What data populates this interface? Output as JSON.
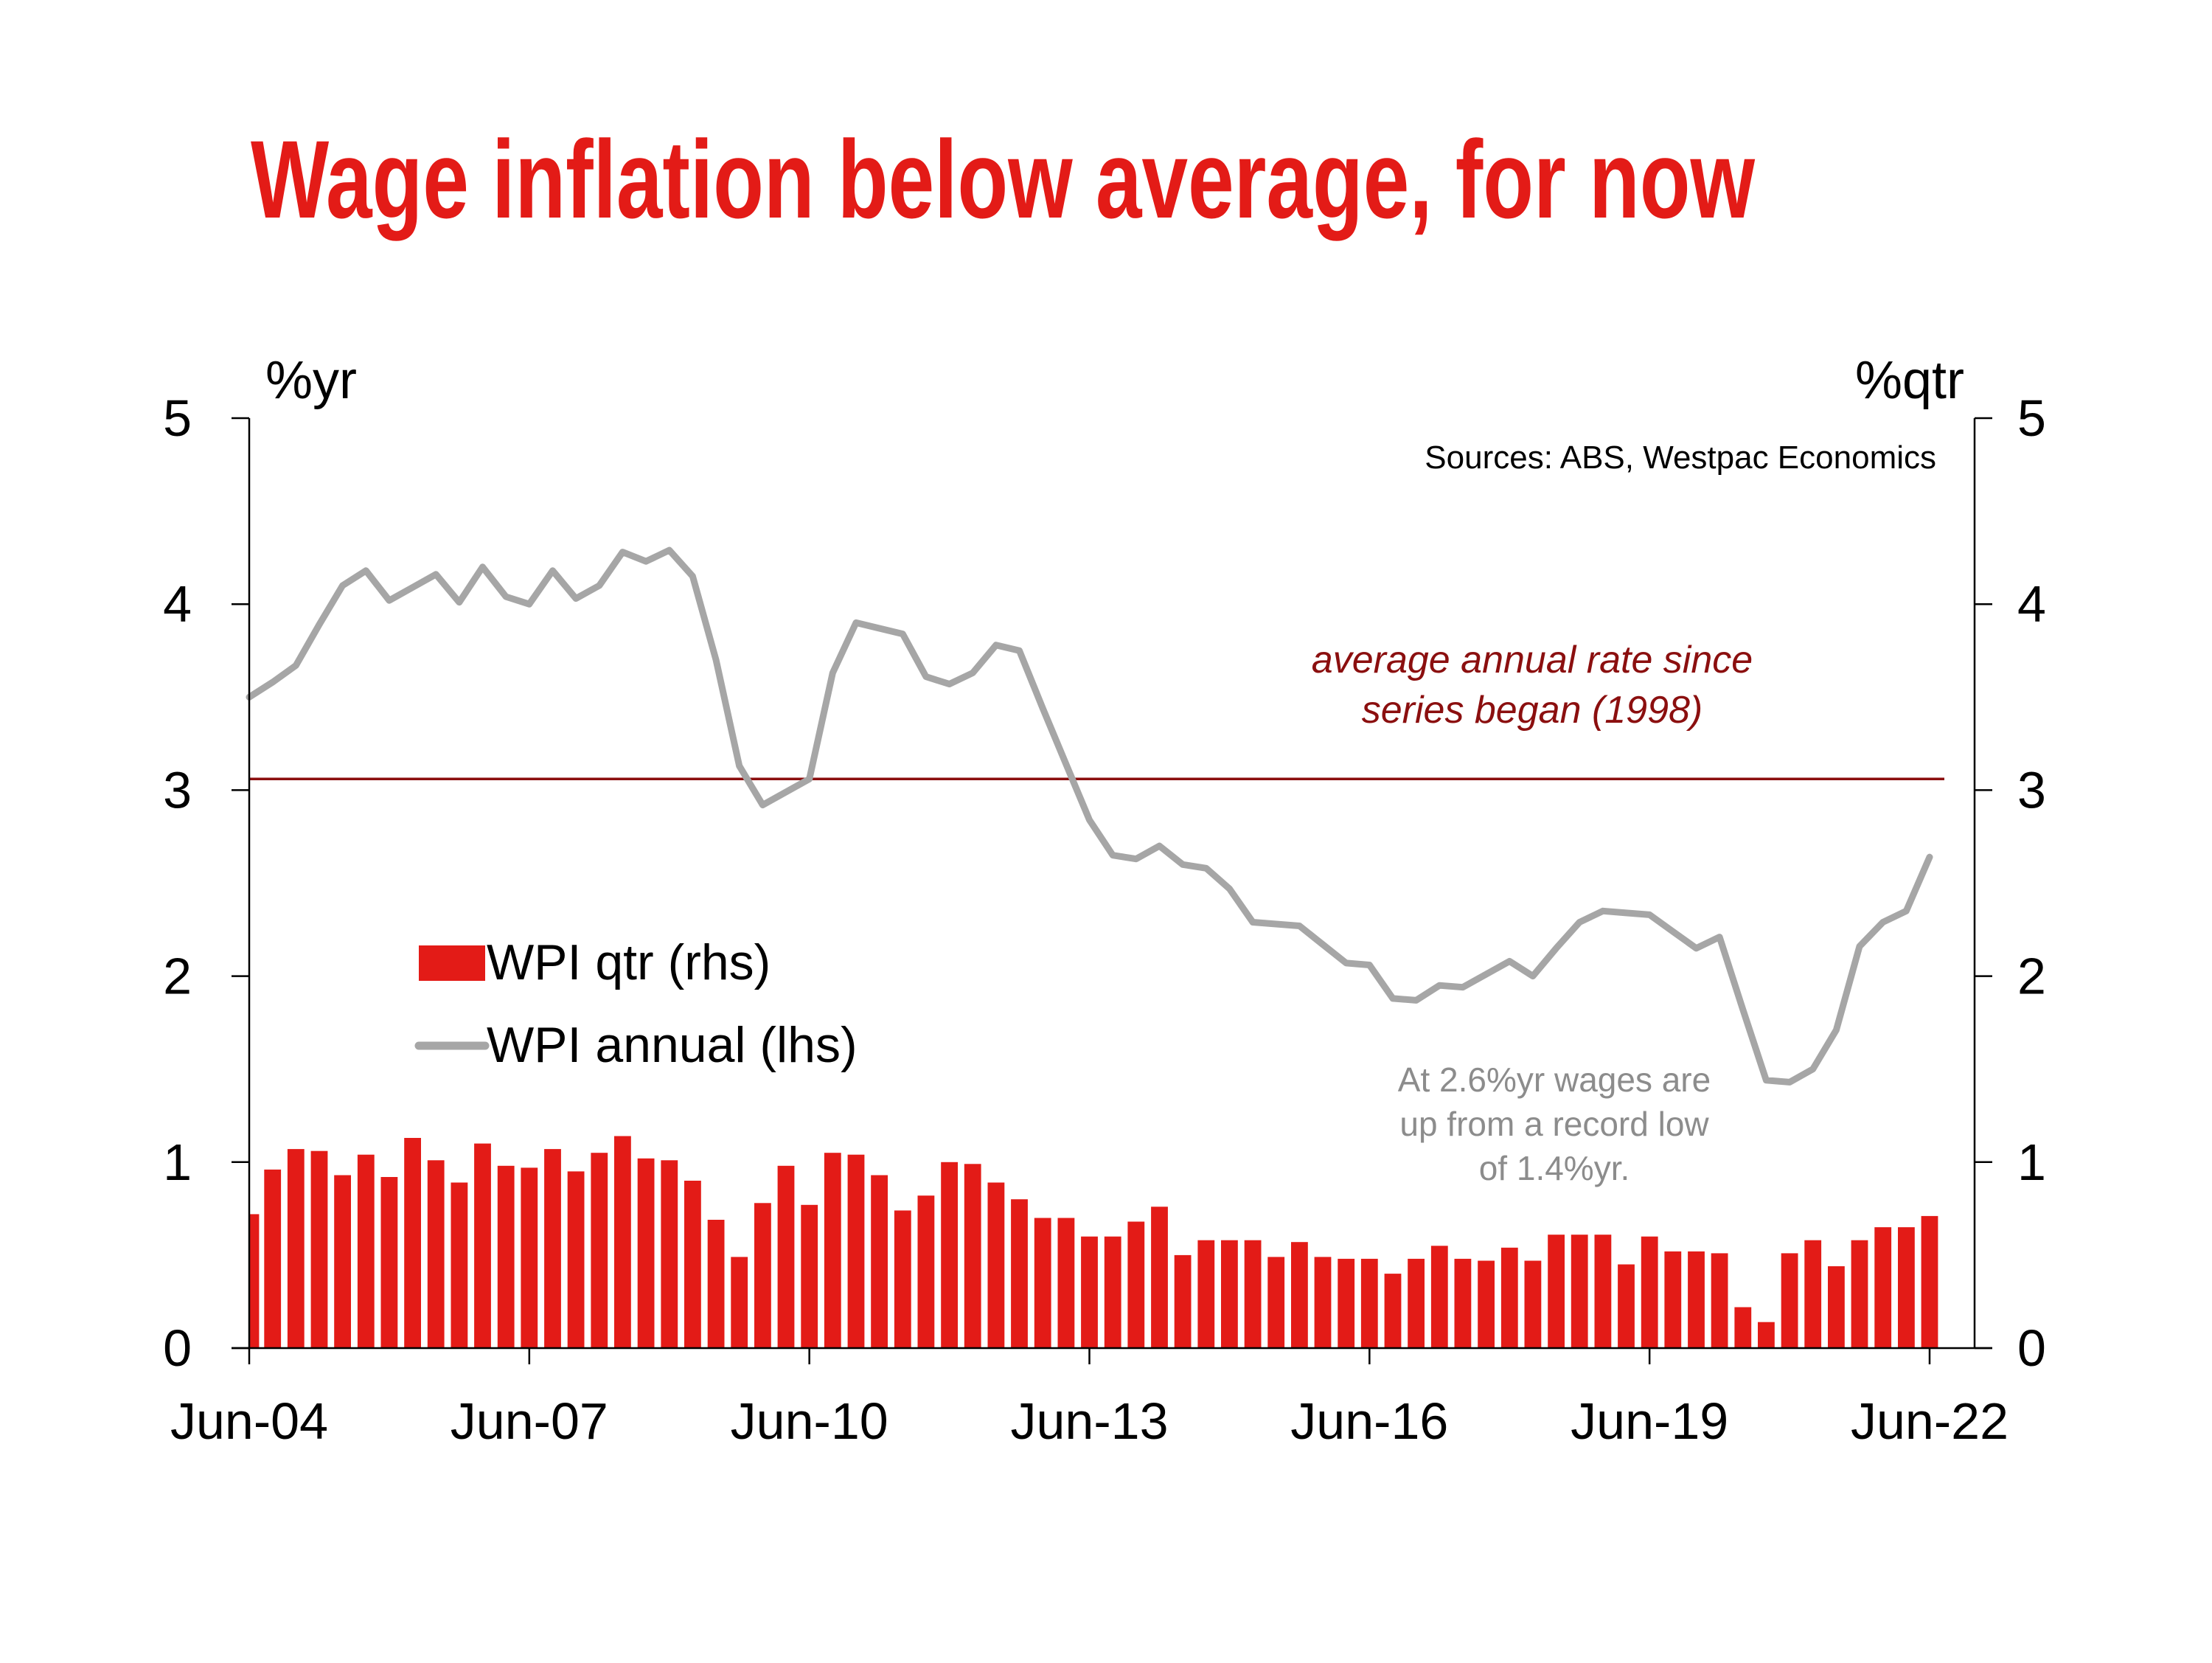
{
  "chart_data": {
    "type": "bar",
    "title": "Wage inflation below average, for now",
    "source": "Sources: ABS, Westpac Economics",
    "y_left_label": "%yr",
    "y_right_label": "%qtr",
    "ylim": [
      0,
      5
    ],
    "y_ticks": [
      "0",
      "1",
      "2",
      "3",
      "4",
      "5"
    ],
    "x_tick_labels": [
      "Jun-04",
      "Jun-07",
      "Jun-10",
      "Jun-13",
      "Jun-16",
      "Jun-19",
      "Jun-22"
    ],
    "x_start": "Jun-04",
    "x_end": "Jun-22",
    "grid": false,
    "legend_position": "center-left",
    "colors": {
      "title": "#e31b17",
      "bars": "#e31b17",
      "annual_line": "#a6a6a6",
      "average_line": "#8b0f0f",
      "average_text": "#8b0f0f",
      "note_text": "#8c8c8c",
      "axis": "#000000"
    },
    "average_line": {
      "value": 3.06,
      "label_line1": "average annual rate since",
      "label_line2": "series began (1998)"
    },
    "annotation": {
      "line1": "At 2.6%yr wages are",
      "line2": "up from a record low",
      "line3": "of 1.4%yr."
    },
    "series": [
      {
        "name": "WPI qtr (rhs)",
        "type": "bar",
        "axis": "right",
        "values": [
          0.72,
          0.96,
          1.07,
          1.06,
          0.93,
          1.04,
          0.92,
          1.13,
          1.01,
          0.89,
          1.1,
          0.98,
          0.97,
          1.07,
          0.95,
          1.05,
          1.14,
          1.02,
          1.01,
          0.9,
          0.69,
          0.49,
          0.78,
          0.98,
          0.77,
          1.05,
          1.04,
          0.93,
          0.74,
          0.82,
          1.0,
          0.99,
          0.89,
          0.8,
          0.7,
          0.7,
          0.6,
          0.6,
          0.68,
          0.76,
          0.5,
          0.58,
          0.58,
          0.58,
          0.49,
          0.57,
          0.49,
          0.48,
          0.48,
          0.4,
          0.48,
          0.55,
          0.48,
          0.47,
          0.54,
          0.47,
          0.61,
          0.61,
          0.61,
          0.45,
          0.6,
          0.52,
          0.52,
          0.51,
          0.22,
          0.14,
          0.51,
          0.58,
          0.44,
          0.58,
          0.65,
          0.65,
          0.71
        ]
      },
      {
        "name": "WPI annual (lhs)",
        "type": "line",
        "axis": "left",
        "values": [
          3.5,
          3.58,
          3.67,
          3.89,
          4.1,
          4.18,
          4.02,
          4.09,
          4.16,
          4.01,
          4.2,
          4.04,
          4.0,
          4.18,
          4.03,
          4.1,
          4.28,
          4.23,
          4.29,
          4.15,
          3.7,
          3.13,
          2.92,
          2.99,
          3.06,
          3.63,
          3.9,
          3.87,
          3.84,
          3.61,
          3.57,
          3.63,
          3.78,
          3.75,
          3.44,
          3.14,
          2.84,
          2.65,
          2.63,
          2.7,
          2.6,
          2.58,
          2.47,
          2.29,
          2.28,
          2.27,
          2.17,
          2.07,
          2.06,
          1.88,
          1.87,
          1.95,
          1.94,
          2.01,
          2.08,
          2.0,
          2.15,
          2.29,
          2.35,
          2.34,
          2.33,
          2.24,
          2.15,
          2.21,
          1.82,
          1.44,
          1.43,
          1.5,
          1.71,
          2.16,
          2.29,
          2.35,
          2.64
        ]
      }
    ]
  }
}
